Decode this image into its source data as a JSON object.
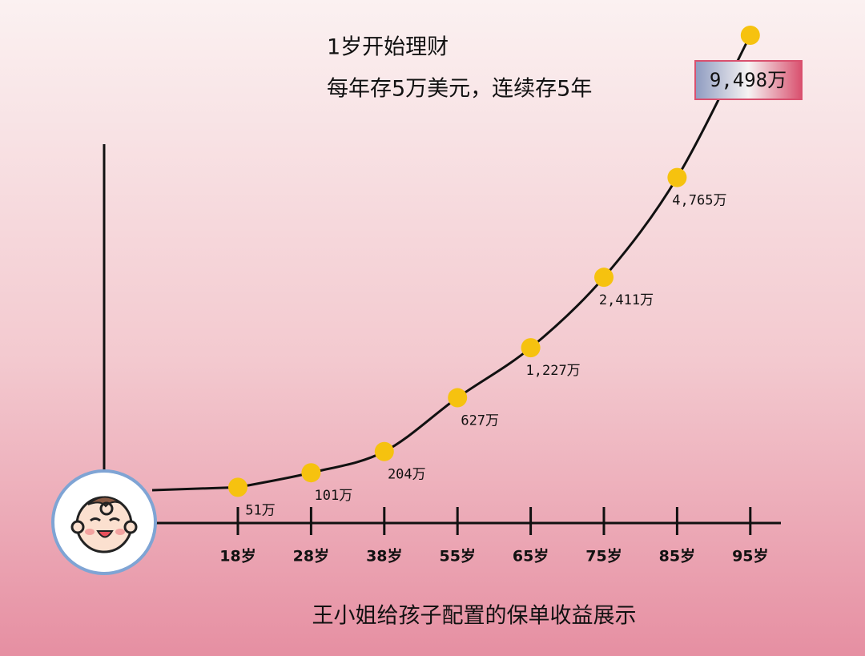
{
  "chart_data": {
    "type": "line",
    "title": "王小姐给孩子配置的保单收益展示",
    "annotations": [
      "1岁开始理财",
      "每年存5万美元，连续存5年"
    ],
    "categories": [
      "18岁",
      "28岁",
      "38岁",
      "55岁",
      "65岁",
      "75岁",
      "85岁",
      "95岁"
    ],
    "values": [
      51,
      101,
      204,
      627,
      1227,
      2411,
      4765,
      9498
    ],
    "value_labels": [
      "51万",
      "101万",
      "204万",
      "627万",
      "1,227万",
      "2,411万",
      "4,765万",
      "9,498万"
    ],
    "color": "#f6c20f",
    "line_color": "#111111"
  }
}
